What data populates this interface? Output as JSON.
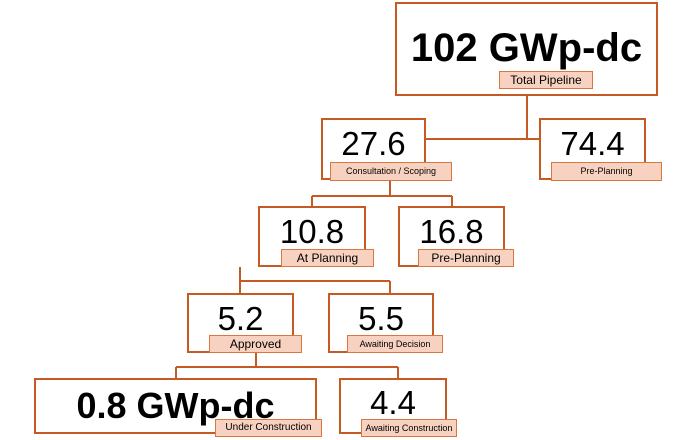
{
  "nodes": {
    "total": {
      "value": "102 GWp-dc",
      "label": "Total Pipeline"
    },
    "consultation": {
      "value": "27.6",
      "label": "Consultation / Scoping"
    },
    "pre_planning_top": {
      "value": "74.4",
      "label": "Pre-Planning"
    },
    "at_planning": {
      "value": "10.8",
      "label": "At Planning"
    },
    "pre_planning_mid": {
      "value": "16.8",
      "label": "Pre-Planning"
    },
    "approved": {
      "value": "5.2",
      "label": "Approved"
    },
    "awaiting_decision": {
      "value": "5.5",
      "label": "Awaiting Decision"
    },
    "under_construction": {
      "value": "0.8 GWp-dc",
      "label": "Under Construction"
    },
    "awaiting_construction": {
      "value": "4.4",
      "label": "Awaiting Construction"
    }
  },
  "colors": {
    "border": "#c55a24",
    "tag_fill": "#f8d2c0",
    "connector": "#c55a24"
  }
}
